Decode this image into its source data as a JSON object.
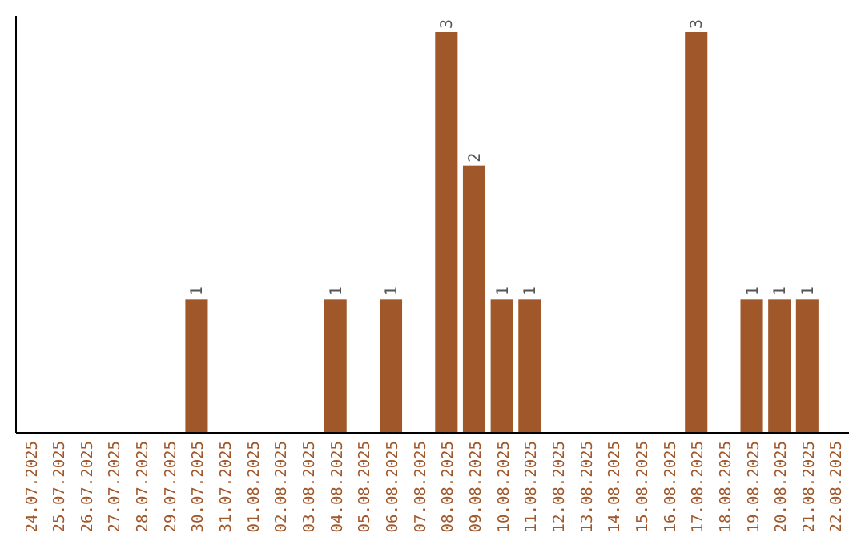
{
  "chart_data": {
    "type": "bar",
    "categories": [
      "24.07.2025",
      "25.07.2025",
      "26.07.2025",
      "27.07.2025",
      "28.07.2025",
      "29.07.2025",
      "30.07.2025",
      "31.07.2025",
      "01.08.2025",
      "02.08.2025",
      "03.08.2025",
      "04.08.2025",
      "05.08.2025",
      "06.08.2025",
      "07.08.2025",
      "08.08.2025",
      "09.08.2025",
      "10.08.2025",
      "11.08.2025",
      "12.08.2025",
      "13.08.2025",
      "14.08.2025",
      "15.08.2025",
      "16.08.2025",
      "17.08.2025",
      "18.08.2025",
      "19.08.2025",
      "20.08.2025",
      "21.08.2025",
      "22.08.2025"
    ],
    "values": [
      0,
      0,
      0,
      0,
      0,
      0,
      1,
      0,
      0,
      0,
      0,
      1,
      0,
      1,
      0,
      3,
      2,
      1,
      1,
      0,
      0,
      0,
      0,
      0,
      3,
      0,
      1,
      1,
      1,
      0
    ],
    "value_labels": [
      null,
      null,
      null,
      null,
      null,
      null,
      "1",
      null,
      null,
      null,
      null,
      "1",
      null,
      "1",
      null,
      "3",
      "2",
      "1",
      "1",
      null,
      null,
      null,
      null,
      null,
      "3",
      null,
      "1",
      "1",
      "1",
      null
    ],
    "color": "#a0572a",
    "tick_labels": "x"
  }
}
